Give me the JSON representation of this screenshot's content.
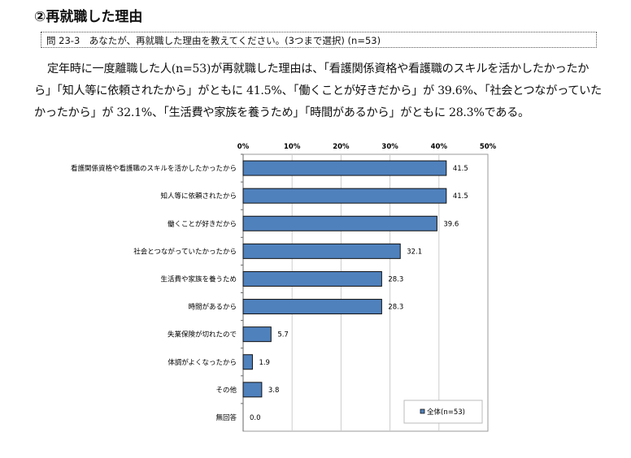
{
  "title": "②再就職した理由",
  "question": "問 23-3　あなたが、再就職した理由を教えてください。(3つまで選択) (n=53)",
  "body": "定年時に一度離職した人(n=53)が再就職した理由は、「看護関係資格や看護職のスキルを活かしたかったから」「知人等に依頼されたから」がともに 41.5%、「働くことが好きだから」が 39.6%、「社会とつながっていたかったから」が 32.1%、「生活費や家族を養うため」「時間があるから」がともに 28.3%である。",
  "chart_data": {
    "type": "bar",
    "orientation": "horizontal",
    "categories": [
      "看護関係資格や看護職のスキルを活かしたかったから",
      "知人等に依頼されたから",
      "働くことが好きだから",
      "社会とつながっていたかったから",
      "生活費や家族を養うため",
      "時間があるから",
      "失業保険が切れたので",
      "体調がよくなったから",
      "その他",
      "無回答"
    ],
    "series": [
      {
        "name": "全体(n=53)",
        "values": [
          41.5,
          41.5,
          39.6,
          32.1,
          28.3,
          28.3,
          5.7,
          1.9,
          3.8,
          0.0
        ],
        "color": "#4f81bd"
      }
    ],
    "xlim": [
      0,
      50
    ],
    "xticks": [
      "0%",
      "10%",
      "20%",
      "30%",
      "40%",
      "50%"
    ],
    "legend": "bottom-right",
    "grid": true
  }
}
